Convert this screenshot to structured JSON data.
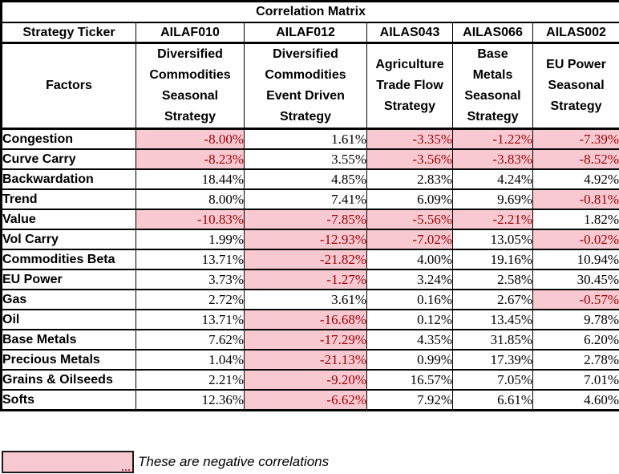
{
  "colors": {
    "negative_fill": "#F8C9D0",
    "negative_text": "#9C0006",
    "grid": "#000000",
    "text": "#000000",
    "background": "#FFFFFF"
  },
  "chart_data": {
    "type": "table",
    "title": "Correlation Matrix",
    "row_header": "Strategy Ticker",
    "factor_header": "Factors",
    "columns": [
      {
        "ticker": "AILAF010",
        "strategy": "Diversified Commodities Seasonal Strategy",
        "strategy_lines": "Diversified\nCommodities\nSeasonal\nStrategy"
      },
      {
        "ticker": "AILAF012",
        "strategy": "Diversified Commodities Event Driven Strategy",
        "strategy_lines": "Diversified\nCommodities\nEvent Driven\nStrategy"
      },
      {
        "ticker": "AILAS043",
        "strategy": "Agriculture Trade Flow Strategy",
        "strategy_lines": "Agriculture\nTrade Flow\nStrategy"
      },
      {
        "ticker": "AILAS066",
        "strategy": "Base Metals Seasonal Strategy",
        "strategy_lines": "Base\nMetals\nSeasonal\nStrategy"
      },
      {
        "ticker": "AILAS002",
        "strategy": "EU Power Seasonal Strategy",
        "strategy_lines": "EU Power\nSeasonal\nStrategy"
      }
    ],
    "rows": [
      {
        "factor": "Congestion",
        "values_pct": [
          -8.0,
          1.61,
          -3.35,
          -1.22,
          -7.39
        ]
      },
      {
        "factor": "Curve Carry",
        "values_pct": [
          -8.23,
          3.55,
          -3.56,
          -3.83,
          -8.52
        ]
      },
      {
        "factor": "Backwardation",
        "values_pct": [
          18.44,
          4.85,
          2.83,
          4.24,
          4.92
        ]
      },
      {
        "factor": "Trend",
        "values_pct": [
          8.0,
          7.41,
          6.09,
          9.69,
          -0.81
        ]
      },
      {
        "factor": "Value",
        "values_pct": [
          -10.83,
          -7.85,
          -5.56,
          -2.21,
          1.82
        ]
      },
      {
        "factor": "Vol Carry",
        "values_pct": [
          1.99,
          -12.93,
          -7.02,
          13.05,
          -0.02
        ]
      },
      {
        "factor": "Commodities Beta",
        "values_pct": [
          13.71,
          -21.82,
          4.0,
          19.16,
          10.94
        ]
      },
      {
        "factor": "EU Power",
        "values_pct": [
          3.73,
          -1.27,
          3.24,
          2.58,
          30.45
        ]
      },
      {
        "factor": "Gas",
        "values_pct": [
          2.72,
          3.61,
          0.16,
          2.67,
          -0.57
        ]
      },
      {
        "factor": "Oil",
        "values_pct": [
          13.71,
          -16.68,
          0.12,
          13.45,
          9.78
        ]
      },
      {
        "factor": "Base Metals",
        "values_pct": [
          7.62,
          -17.29,
          4.35,
          31.85,
          6.2
        ]
      },
      {
        "factor": "Precious Metals",
        "values_pct": [
          1.04,
          -21.13,
          0.99,
          17.39,
          2.78
        ]
      },
      {
        "factor": "Grains & Oilseeds",
        "values_pct": [
          2.21,
          -9.2,
          16.57,
          7.05,
          7.01
        ]
      },
      {
        "factor": "Softs",
        "values_pct": [
          12.36,
          -6.62,
          7.92,
          6.61,
          4.6
        ]
      }
    ],
    "value_format": "percent_2dp",
    "highlight_rule": "negative values shown with pink fill and dark red text"
  },
  "legend": {
    "note": "These are negative correlations"
  }
}
